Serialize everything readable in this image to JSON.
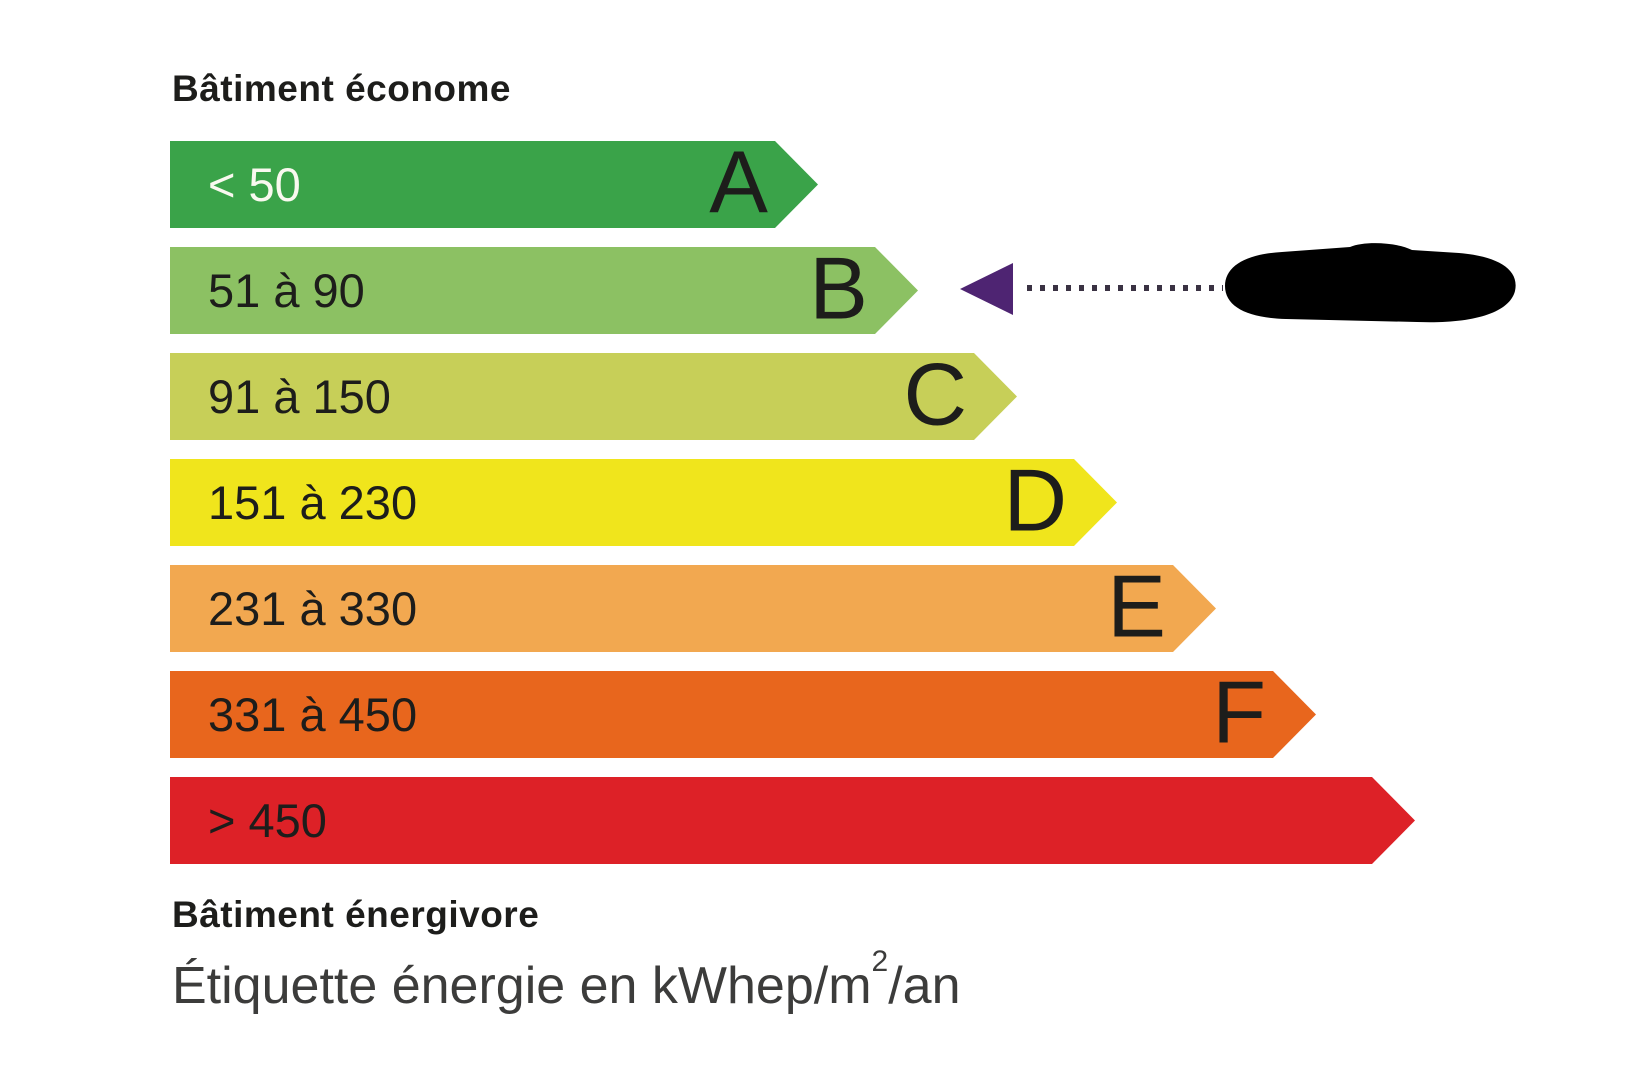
{
  "page": {
    "top_label": "Bâtiment économe",
    "bottom_label": "Bâtiment énergivore",
    "caption": {
      "prefix": "Étiquette énergie en kWhep/m",
      "sup": "2",
      "suffix": "/an"
    }
  },
  "chart_data": {
    "type": "bar",
    "variant": "energy-performance-label-DPE",
    "title": "Étiquette énergie en kWhep/m²/an",
    "unit": "kWhep/m²/an",
    "top_annotation": "Bâtiment économe",
    "bottom_annotation": "Bâtiment énergivore",
    "orientation": "horizontal",
    "rows": [
      {
        "letter": "A",
        "range": "< 50",
        "color": "#3aa349",
        "range_text_color": "#f9f9ef"
      },
      {
        "letter": "B",
        "range": "51 à 90",
        "color": "#8cc163",
        "range_text_color": "#1d1d1b"
      },
      {
        "letter": "C",
        "range": "91 à 150",
        "color": "#c7cf58",
        "range_text_color": "#1d1d1b"
      },
      {
        "letter": "D",
        "range": "151 à 230",
        "color": "#f0e51c",
        "range_text_color": "#1d1d1b"
      },
      {
        "letter": "E",
        "range": "231 à 330",
        "color": "#f2a850",
        "range_text_color": "#1d1d1b"
      },
      {
        "letter": "F",
        "range": "331 à 450",
        "color": "#e8661d",
        "range_text_color": "#1d1d1b"
      },
      {
        "letter": "",
        "range": "> 450",
        "color": "#dd2127",
        "range_text_color": "#1d1d1b"
      }
    ],
    "selected_row": "B",
    "value_redacted": true,
    "marker_color": "#4e2472",
    "redaction_color": "#000000"
  }
}
